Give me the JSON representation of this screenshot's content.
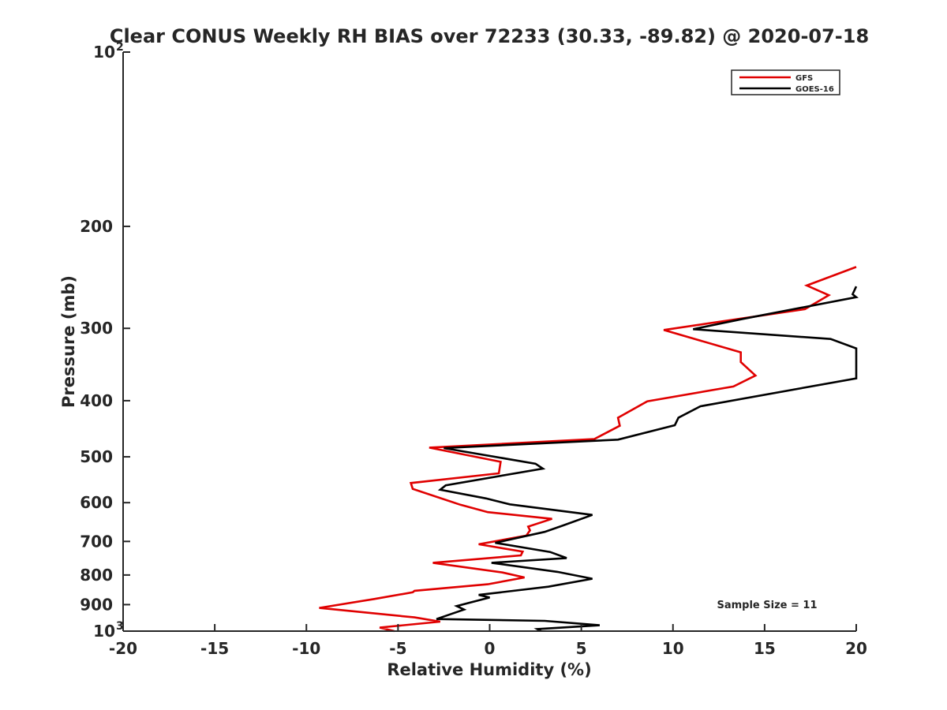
{
  "chart_data": {
    "type": "line",
    "title": "Clear CONUS Weekly RH BIAS over 72233 (30.33, -89.82) @ 2020-07-18",
    "xlabel": "Relative Humidity (%)",
    "ylabel": "Pressure (mb)",
    "xlim": [
      -20,
      20
    ],
    "ylim": [
      100,
      1000
    ],
    "yscale": "log",
    "y_reversed": true,
    "xticks": [
      -20,
      -15,
      -10,
      -5,
      0,
      5,
      10,
      15,
      20
    ],
    "yticks": [
      {
        "value": 100,
        "label": "10",
        "sup": "2"
      },
      {
        "value": 200,
        "label": "200",
        "sup": ""
      },
      {
        "value": 300,
        "label": "300",
        "sup": ""
      },
      {
        "value": 400,
        "label": "400",
        "sup": ""
      },
      {
        "value": 500,
        "label": "500",
        "sup": ""
      },
      {
        "value": 600,
        "label": "600",
        "sup": ""
      },
      {
        "value": 700,
        "label": "700",
        "sup": ""
      },
      {
        "value": 800,
        "label": "800",
        "sup": ""
      },
      {
        "value": 900,
        "label": "900",
        "sup": ""
      },
      {
        "value": 1000,
        "label": "10",
        "sup": "3"
      }
    ],
    "grid": false,
    "legend_position": "top-right",
    "annotation": "Sample Size = 11",
    "series": [
      {
        "name": "GFS",
        "color": "#e00000",
        "points": [
          [
            -5.2,
            1000
          ],
          [
            -6.0,
            986
          ],
          [
            -2.7,
            963
          ],
          [
            -4.1,
            947
          ],
          [
            -9.3,
            912
          ],
          [
            -6.3,
            880
          ],
          [
            -4.2,
            857
          ],
          [
            -4.1,
            852
          ],
          [
            -0.1,
            830
          ],
          [
            1.9,
            808
          ],
          [
            0.7,
            792
          ],
          [
            -3.1,
            762
          ],
          [
            1.7,
            740
          ],
          [
            1.8,
            729
          ],
          [
            -0.6,
            708
          ],
          [
            2.0,
            684
          ],
          [
            2.2,
            670
          ],
          [
            2.1,
            660
          ],
          [
            3.4,
            640
          ],
          [
            -0.1,
            623
          ],
          [
            -1.6,
            605
          ],
          [
            -4.2,
            568
          ],
          [
            -4.3,
            555
          ],
          [
            0.5,
            534
          ],
          [
            0.6,
            510
          ],
          [
            -3.3,
            482
          ],
          [
            5.7,
            466
          ],
          [
            7.1,
            442
          ],
          [
            7.0,
            428
          ],
          [
            8.6,
            401
          ],
          [
            13.3,
            378
          ],
          [
            14.5,
            362
          ],
          [
            13.7,
            343
          ],
          [
            13.7,
            330
          ],
          [
            9.5,
            302
          ],
          [
            17.2,
            278
          ],
          [
            18.5,
            263
          ],
          [
            17.3,
            253
          ],
          [
            20.0,
            235
          ]
        ]
      },
      {
        "name": "GOES-16",
        "color": "#000000",
        "points": [
          [
            2.8,
            1000
          ],
          [
            2.6,
            992
          ],
          [
            6.0,
            977
          ],
          [
            3.0,
            960
          ],
          [
            -2.9,
            953
          ],
          [
            -1.4,
            918
          ],
          [
            -1.8,
            905
          ],
          [
            0.0,
            875
          ],
          [
            -0.6,
            866
          ],
          [
            3.2,
            838
          ],
          [
            5.6,
            812
          ],
          [
            3.7,
            790
          ],
          [
            0.1,
            762
          ],
          [
            4.2,
            748
          ],
          [
            3.3,
            730
          ],
          [
            0.3,
            704
          ],
          [
            3.0,
            674
          ],
          [
            4.0,
            657
          ],
          [
            5.6,
            630
          ],
          [
            1.1,
            604
          ],
          [
            -0.2,
            590
          ],
          [
            -2.7,
            570
          ],
          [
            -2.4,
            560
          ],
          [
            2.9,
            524
          ],
          [
            2.5,
            514
          ],
          [
            -2.5,
            483
          ],
          [
            7.0,
            467
          ],
          [
            10.1,
            441
          ],
          [
            10.3,
            428
          ],
          [
            11.5,
            409
          ],
          [
            20.0,
            366
          ],
          [
            20.0,
            325
          ],
          [
            18.6,
            313
          ],
          [
            11.1,
            301
          ],
          [
            13.8,
            289
          ],
          [
            20.0,
            265
          ],
          [
            19.8,
            262
          ],
          [
            20.0,
            254
          ]
        ]
      }
    ]
  }
}
